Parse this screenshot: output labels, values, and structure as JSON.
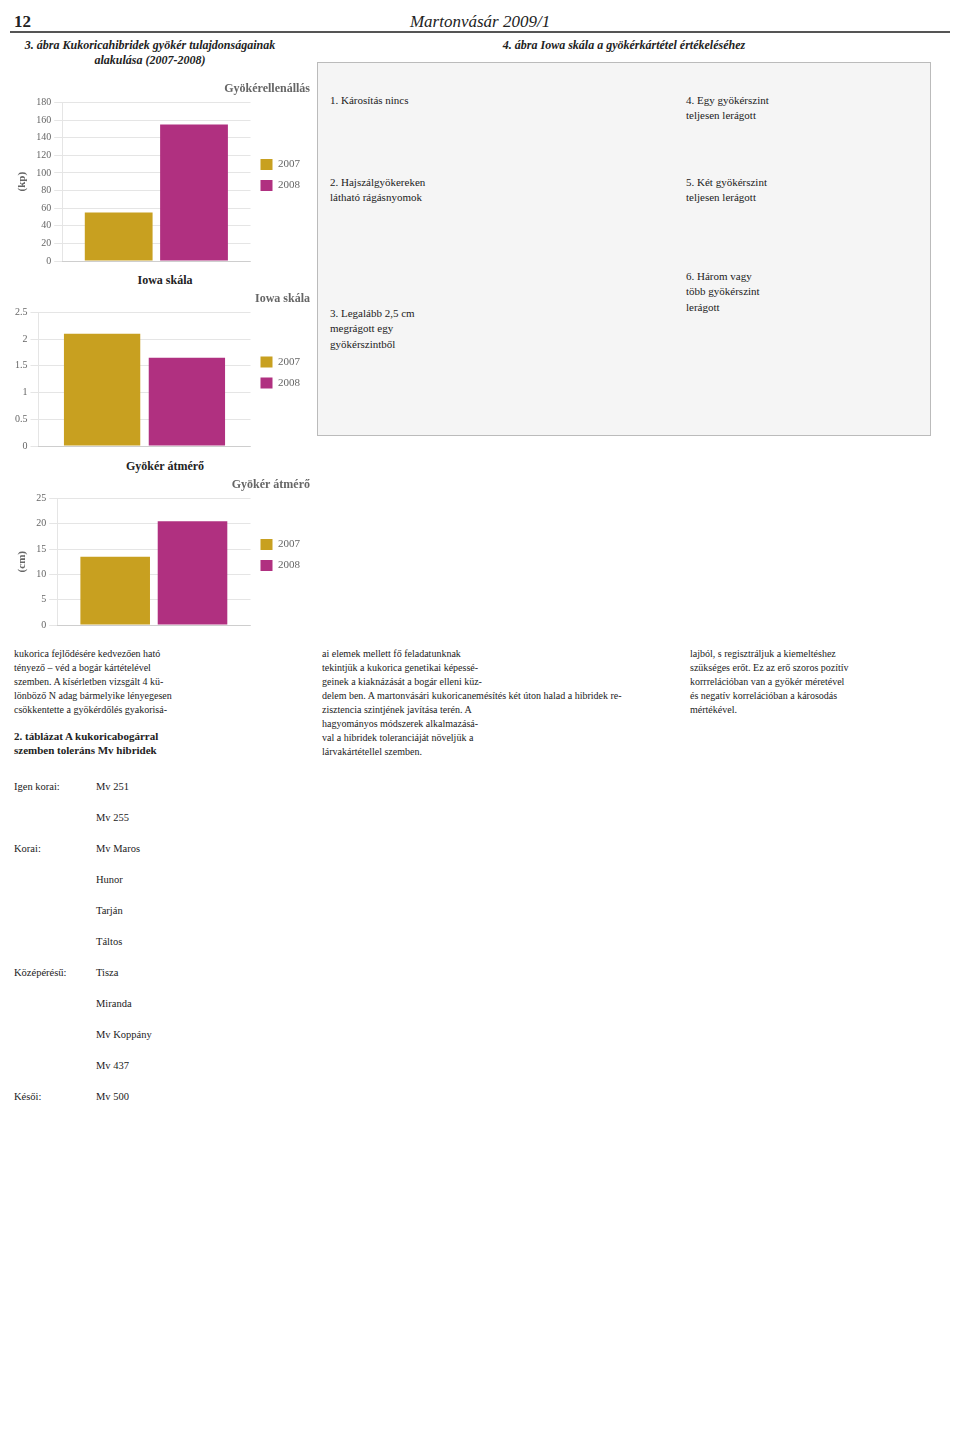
{
  "chart_data": [
    {
      "type": "bar",
      "title": "Gyökérellenállás",
      "ylabel": "(kp)",
      "categories": [
        null
      ],
      "series": [
        {
          "name": "2007",
          "color": "#C8A020",
          "values": [
            55
          ]
        },
        {
          "name": "2008",
          "color": "#B03080",
          "values": [
            155
          ]
        }
      ],
      "ylim": [
        0,
        180
      ],
      "yticks": [
        0,
        20,
        40,
        60,
        80,
        100,
        120,
        140,
        160,
        180
      ],
      "grid": true,
      "legend": "right",
      "tick_labels": "y",
      "annotations": [
        "12",
        "Martonvásár 2009/1",
        "3. ábra Kukoricahibridek gyökér tulajdonságainak\nalakulása (2007-2008)",
        "4. ábra Iowa skála a gyökérkártétel értékeléséhez",
        "1. Károsítás nincs",
        "2. Hajszálgyökereken\nlátható rágásnyomok",
        "3. Legalább 2,5 cm\nmegrágott egy\ngyökérszintből",
        "4. Egy gyökérszint\nteljesen lerágott",
        "5. Két gyökérszint\nteljesen lerágott",
        "6. Három vagy\ntöbb gyökérszint\nlerágott",
        "kukorica fejlődésére kedvezően ható\ntényező – véd a bogár kártételével\nszemben. A kísérletben vizsgált 4 kü-\nlönböző N adag bármelyike lényegesen\ncsökkentette a gyökérdőlés gyakorisá-",
        "ai elemek mellett fő feladatunknak\ntekintjük a kukorica genetikai képessé-\ngeinek a kiaknázását a bogár elleni küz-\ndelem ben. A martonvásári kukoricanemésítés két úton halad a hibridek re-\nzisztencia szintjének javítása terén. A\nhagyományos módszerek alkalmazásá-\nval a hibridek toleranciáját növeljük a\nlárvakártétellel szemben.",
        "lajból, s regisztráljuk a kiemeltéshez\nszükséges erőt. Ez az erő szoros pozítív\nkorrrelációban van a gyökér méretével\nés negatív korrelációban a károsodás\nmértékével.",
        "2. táblázat A kukoricabogárral\nszemben toleráns Mv hibridek",
        "Igen korai:",
        "Mv 251",
        "Mv 255",
        "Korai:",
        "Mv Maros",
        "Hunor",
        "Tarján",
        "Táltos",
        "Középérésű:",
        "Tisza",
        "Miranda",
        "Mv Koppány",
        "Mv 437",
        "Késői:",
        "Mv 500"
      ]
    },
    {
      "type": "bar",
      "title": "Iowa skála",
      "subtitle": "Iowa skála",
      "categories": [
        null
      ],
      "series": [
        {
          "name": "2007",
          "color": "#C8A020",
          "values": [
            2.1
          ]
        },
        {
          "name": "2008",
          "color": "#B03080",
          "values": [
            1.65
          ]
        }
      ],
      "ylim": [
        0,
        2.5
      ],
      "yticks": [
        0,
        0.5,
        1,
        1.5,
        2,
        2.5
      ],
      "grid": true,
      "legend": "right",
      "tick_labels": "y"
    },
    {
      "type": "bar",
      "title": "Gyökér átmérő",
      "subtitle": "Gyökér átmérő",
      "ylabel": "(cm)",
      "categories": [
        null
      ],
      "series": [
        {
          "name": "2007",
          "color": "#C8A020",
          "values": [
            13.5
          ]
        },
        {
          "name": "2008",
          "color": "#B03080",
          "values": [
            20.5
          ]
        }
      ],
      "ylim": [
        0,
        25
      ],
      "yticks": [
        0,
        5,
        10,
        15,
        20,
        25
      ],
      "grid": true,
      "legend": "right",
      "tick_labels": "y"
    }
  ]
}
